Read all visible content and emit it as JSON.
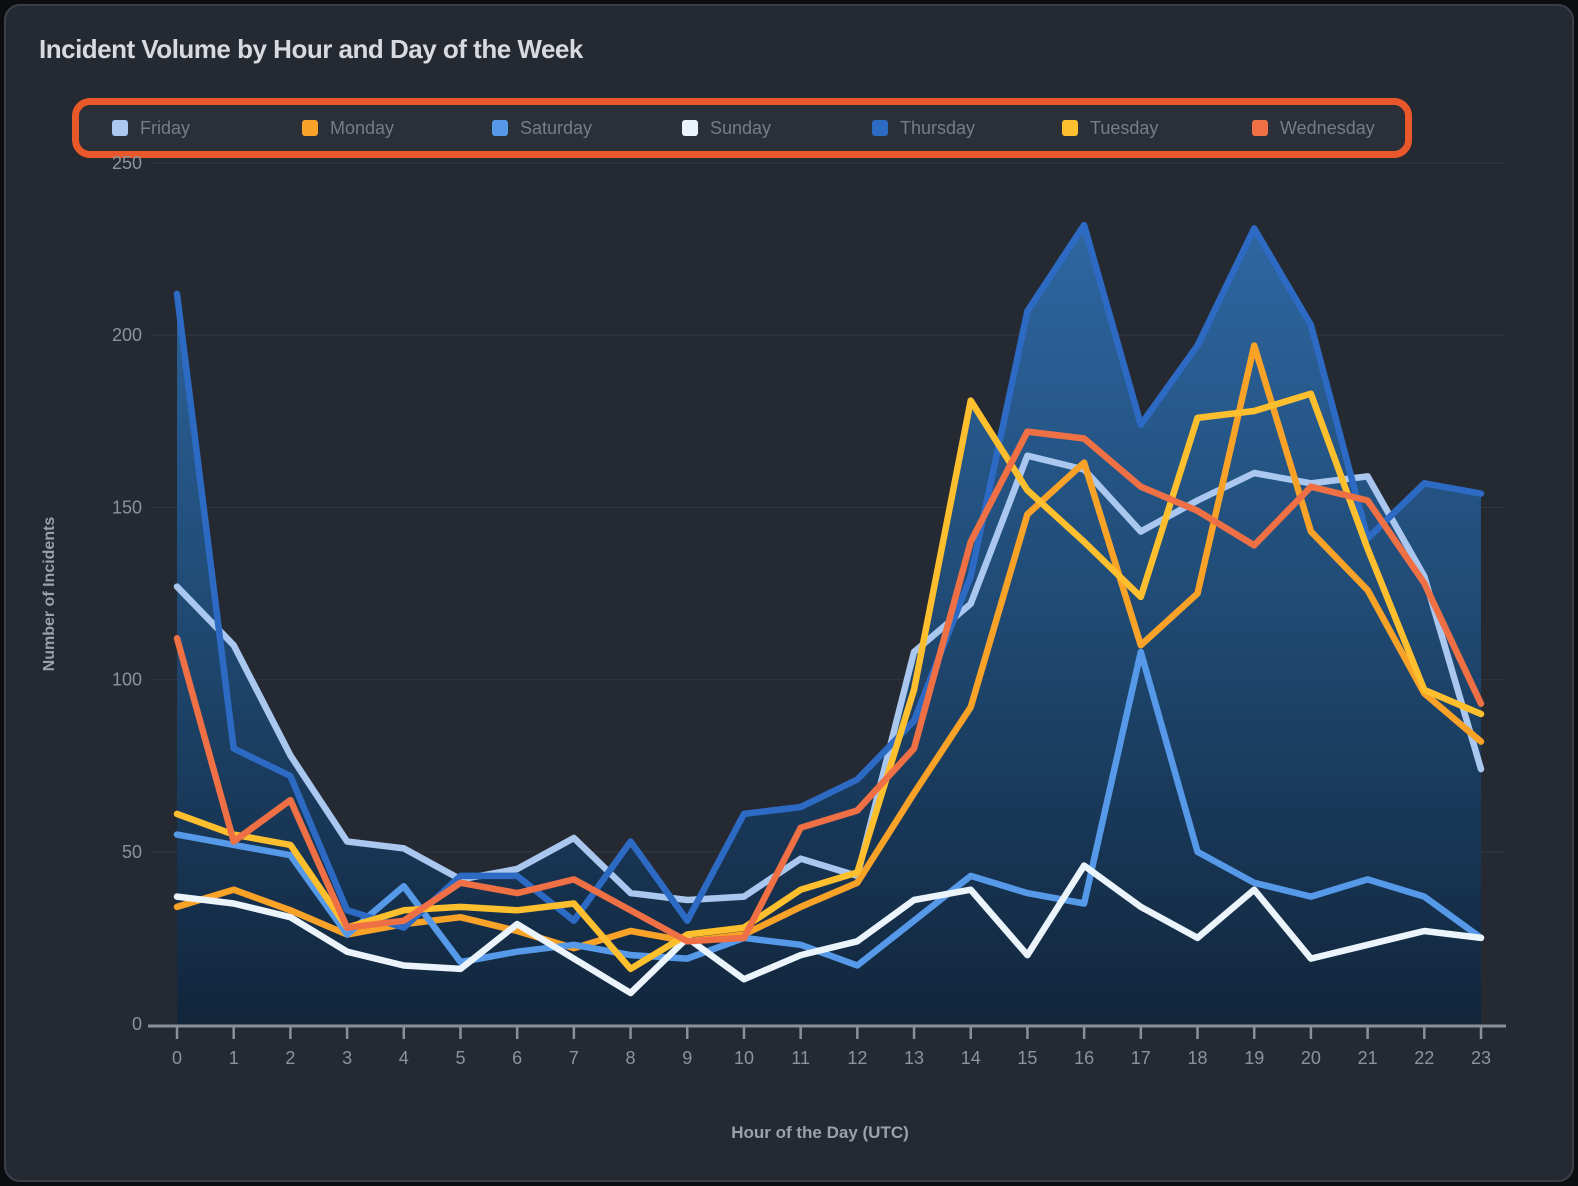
{
  "card": {
    "title": "Incident Volume by Hour and Day of the Week"
  },
  "legend": {
    "position": "top",
    "highlight_annotation_color": "#e8582b",
    "items": [
      {
        "label": "Friday",
        "color": "#a9c7ef"
      },
      {
        "label": "Monday",
        "color": "#f9a228"
      },
      {
        "label": "Saturday",
        "color": "#5599e8"
      },
      {
        "label": "Sunday",
        "color": "#ecf4fb"
      },
      {
        "label": "Thursday",
        "color": "#2d6ac4"
      },
      {
        "label": "Tuesday",
        "color": "#fdbf2d"
      },
      {
        "label": "Wednesday",
        "color": "#ee7044"
      }
    ]
  },
  "chart_data": {
    "type": "line",
    "title": "Incident Volume by Hour and Day of the Week",
    "xlabel": "Hour of the Day (UTC)",
    "ylabel": "Number of Incidents",
    "x": [
      0,
      1,
      2,
      3,
      4,
      5,
      6,
      7,
      8,
      9,
      10,
      11,
      12,
      13,
      14,
      15,
      16,
      17,
      18,
      19,
      20,
      21,
      22,
      23
    ],
    "xlim": [
      0,
      23
    ],
    "ylim": [
      0,
      250
    ],
    "yticks": [
      0,
      50,
      100,
      150,
      200,
      250
    ],
    "grid": true,
    "legend_position": "top",
    "area_fill": "gradient under upper envelope of all series",
    "series": [
      {
        "name": "Friday",
        "color": "#a9c7ef",
        "values": [
          127,
          110,
          78,
          53,
          51,
          42,
          45,
          54,
          38,
          36,
          37,
          48,
          43,
          108,
          122,
          165,
          161,
          143,
          152,
          160,
          157,
          159,
          130,
          74
        ]
      },
      {
        "name": "Monday",
        "color": "#f9a228",
        "values": [
          34,
          39,
          33,
          26,
          29,
          31,
          27,
          22,
          27,
          24,
          26,
          34,
          41,
          67,
          92,
          148,
          163,
          110,
          125,
          197,
          143,
          126,
          96,
          82
        ]
      },
      {
        "name": "Saturday",
        "color": "#5599e8",
        "values": [
          55,
          52,
          49,
          26,
          40,
          18,
          21,
          23,
          20,
          19,
          25,
          23,
          17,
          30,
          43,
          38,
          35,
          108,
          50,
          41,
          37,
          42,
          37,
          25
        ]
      },
      {
        "name": "Sunday",
        "color": "#ecf4fb",
        "values": [
          37,
          35,
          31,
          21,
          17,
          16,
          29,
          19,
          9,
          25,
          13,
          20,
          24,
          36,
          39,
          20,
          46,
          34,
          25,
          39,
          19,
          23,
          27,
          25
        ]
      },
      {
        "name": "Thursday",
        "color": "#2d6ac4",
        "values": [
          212,
          80,
          72,
          33,
          28,
          43,
          43,
          30,
          53,
          30,
          61,
          63,
          71,
          88,
          130,
          207,
          232,
          174,
          197,
          231,
          203,
          141,
          157,
          154
        ]
      },
      {
        "name": "Tuesday",
        "color": "#fdbf2d",
        "values": [
          61,
          55,
          52,
          28,
          33,
          34,
          33,
          35,
          16,
          26,
          28,
          39,
          44,
          97,
          181,
          155,
          140,
          124,
          176,
          178,
          183,
          138,
          97,
          90
        ]
      },
      {
        "name": "Wednesday",
        "color": "#ee7044",
        "values": [
          112,
          53,
          65,
          28,
          30,
          41,
          38,
          42,
          33,
          24,
          25,
          57,
          62,
          80,
          140,
          172,
          170,
          156,
          149,
          139,
          156,
          152,
          128,
          93
        ]
      }
    ]
  },
  "colors": {
    "page_background": "#0b0d10",
    "card_background": "#252931",
    "grid": "#2f353e",
    "axis": "#8a909a",
    "tick_label": "#8d939c",
    "axis_title": "#9ba1ab",
    "title_text": "#d7dade",
    "legend_label": "#767d89",
    "fill_top": "#2f6cab",
    "fill_bottom": "#10253c"
  }
}
